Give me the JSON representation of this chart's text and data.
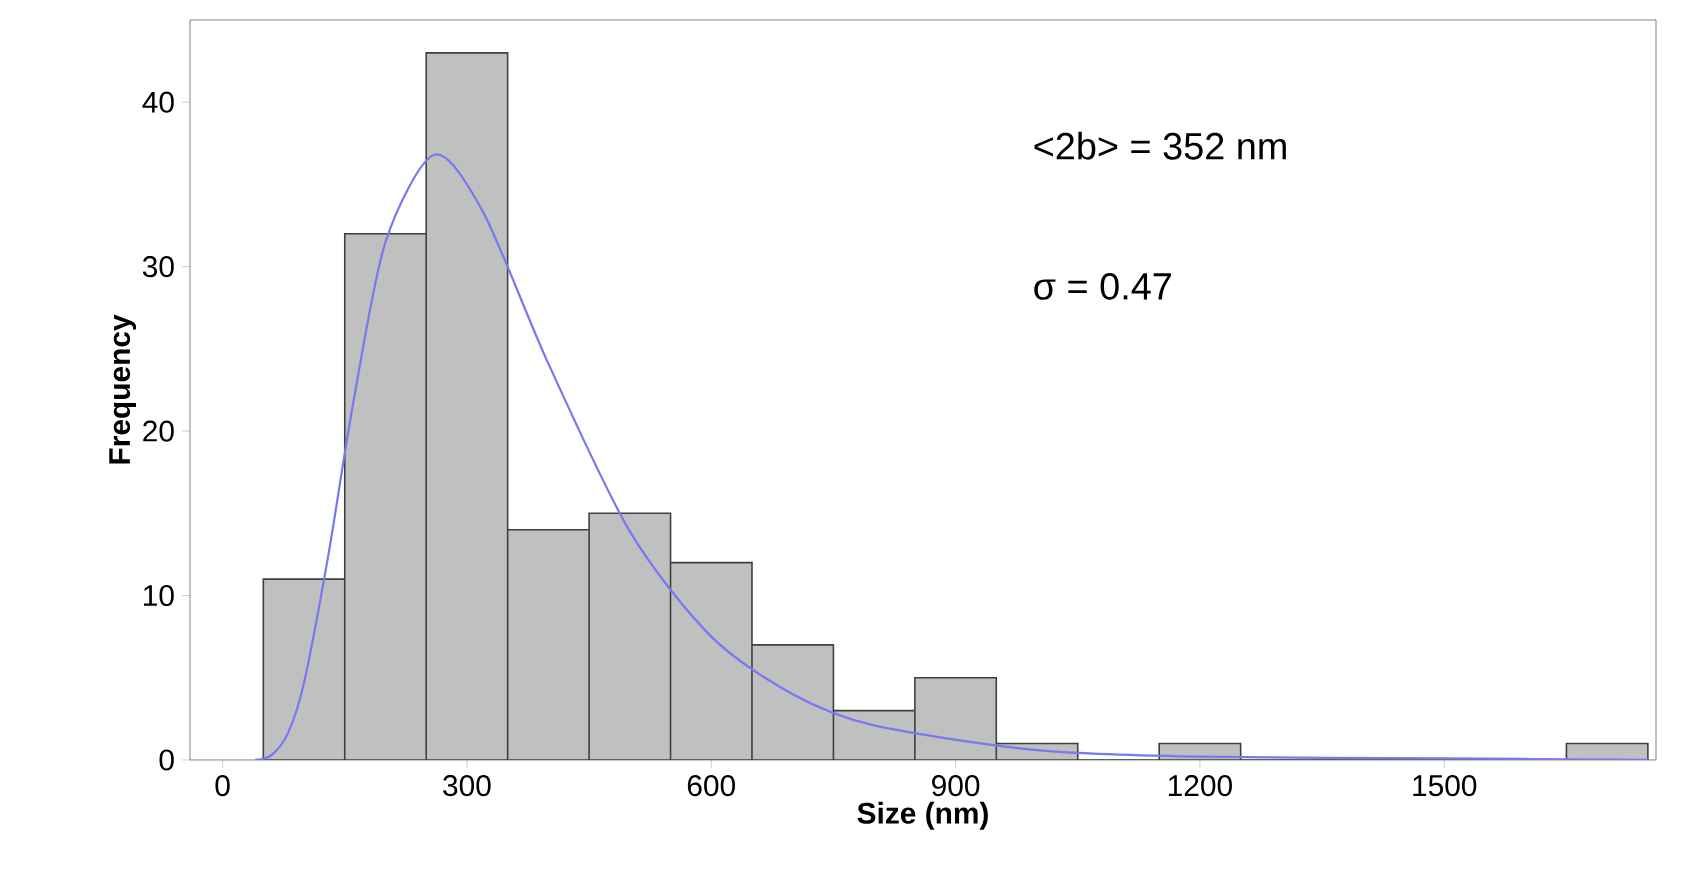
{
  "chart_data": {
    "type": "histogram",
    "xlabel": "Size (nm)",
    "ylabel": "Frequency",
    "bins": [
      50,
      150,
      250,
      350,
      450,
      550,
      650,
      750,
      850,
      950,
      1050,
      1150,
      1250,
      1350,
      1450,
      1550,
      1650,
      1750
    ],
    "values": [
      11,
      32,
      43,
      14,
      15,
      12,
      7,
      3,
      5,
      1,
      0,
      1,
      0,
      0,
      0,
      0,
      1
    ],
    "color": "#c0c0c0",
    "series": [
      {
        "type": "line",
        "color": "#7878f0",
        "x": [
          40,
          60,
          80,
          100,
          130,
          160,
          200,
          260,
          320,
          400,
          500,
          600,
          700,
          800,
          1000,
          1200,
          1500,
          1750
        ],
        "values": [
          0,
          0.3,
          1.6,
          4.7,
          12.5,
          21.6,
          31.5,
          36.8,
          33.3,
          24.1,
          13.9,
          7.5,
          4,
          2.1,
          0.6,
          0.2,
          0.1,
          0
        ]
      }
    ],
    "annotations": [
      "<2b> = 352 nm",
      "σ = 0.47"
    ],
    "xlim": [
      -40,
      1760
    ],
    "ylim": [
      0,
      45
    ],
    "xticks": [
      0,
      300,
      600,
      900,
      1200,
      1500
    ],
    "yticks": [
      0,
      10,
      20,
      30,
      40
    ],
    "grid": false
  }
}
